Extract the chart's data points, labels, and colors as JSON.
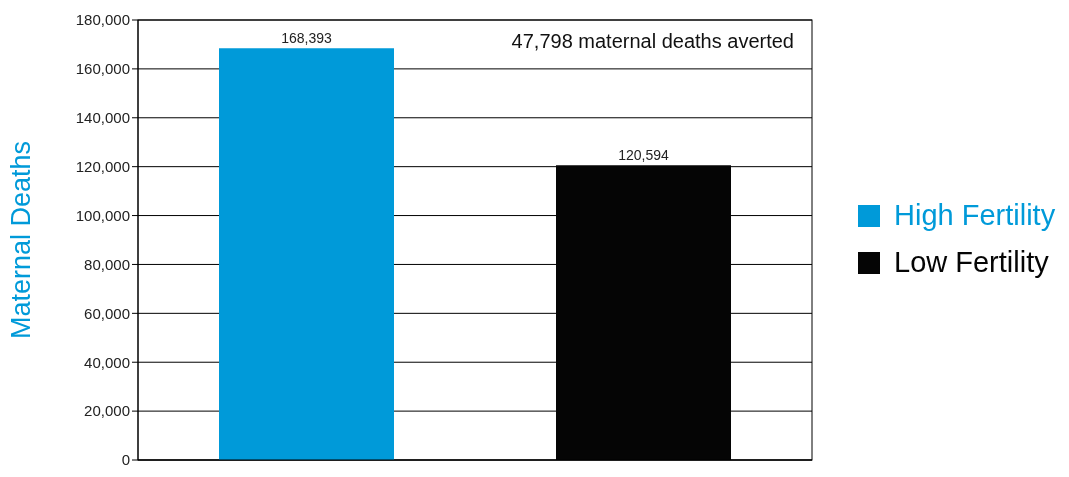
{
  "chart_data": {
    "type": "bar",
    "ylabel": "Maternal Deaths",
    "categories": [
      null,
      null
    ],
    "series": [
      {
        "name": "High Fertility",
        "color": "#009ad9",
        "values": [
          168393,
          null
        ],
        "value_labels": [
          "168,393",
          null
        ]
      },
      {
        "name": "Low Fertility",
        "color": "#050505",
        "values": [
          null,
          120594
        ],
        "value_labels": [
          null,
          "120,594"
        ]
      }
    ],
    "ylim": [
      0,
      180000
    ],
    "yticks": [
      0,
      {
        "value": 20000,
        "label": "20,000"
      },
      {
        "value": 40000,
        "label": "40,000"
      },
      {
        "value": 60000,
        "label": "60,000"
      },
      {
        "value": 80000,
        "label": "80,000"
      },
      {
        "value": 100000,
        "label": "100,000"
      },
      {
        "value": 120000,
        "label": "120,000"
      },
      {
        "value": 140000,
        "label": "140,000"
      },
      {
        "value": 160000,
        "label": "160,000"
      },
      {
        "value": 180000,
        "label": "180,000"
      }
    ],
    "grid": "y",
    "legend": "right",
    "annotations": [
      "47,798 maternal deaths averted"
    ]
  }
}
